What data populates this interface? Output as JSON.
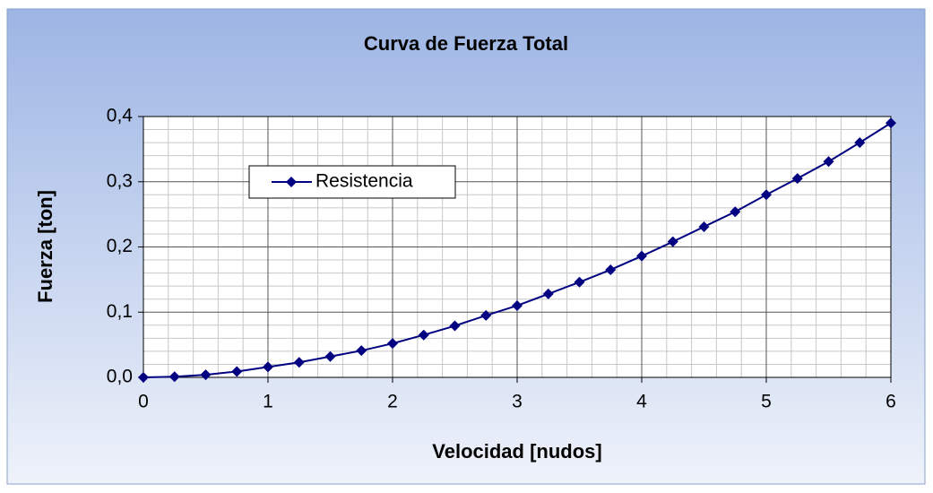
{
  "chart_data": {
    "type": "line",
    "title": "Curva de Fuerza Total",
    "x_label": "Velocidad [nudos]",
    "y_label": "Fuerza [ton]",
    "x": [
      0,
      0.25,
      0.5,
      0.75,
      1,
      1.25,
      1.5,
      1.75,
      2,
      2.25,
      2.5,
      2.75,
      3,
      3.25,
      3.5,
      3.75,
      4,
      4.25,
      4.5,
      4.75,
      5,
      5.25,
      5.5,
      5.75,
      6
    ],
    "series": [
      {
        "name": "Resistencia",
        "color": "#000080",
        "values": [
          0,
          0.001,
          0.004,
          0.009,
          0.016,
          0.023,
          0.032,
          0.041,
          0.052,
          0.065,
          0.079,
          0.095,
          0.11,
          0.128,
          0.146,
          0.165,
          0.186,
          0.208,
          0.231,
          0.254,
          0.28,
          0.305,
          0.331,
          0.36,
          0.39
        ]
      }
    ],
    "xlim": [
      0,
      6
    ],
    "xticks": [
      0,
      1,
      2,
      3,
      4,
      5,
      6
    ],
    "ylim": [
      0,
      0.4
    ],
    "yticks": [
      {
        "value": 0,
        "label": "0,0"
      },
      {
        "value": 0.1,
        "label": "0,1"
      },
      {
        "value": 0.2,
        "label": "0,2"
      },
      {
        "value": 0.3,
        "label": "0,3"
      },
      {
        "value": 0.4,
        "label": "0,4"
      }
    ],
    "grid": true,
    "legend": "upper left"
  }
}
